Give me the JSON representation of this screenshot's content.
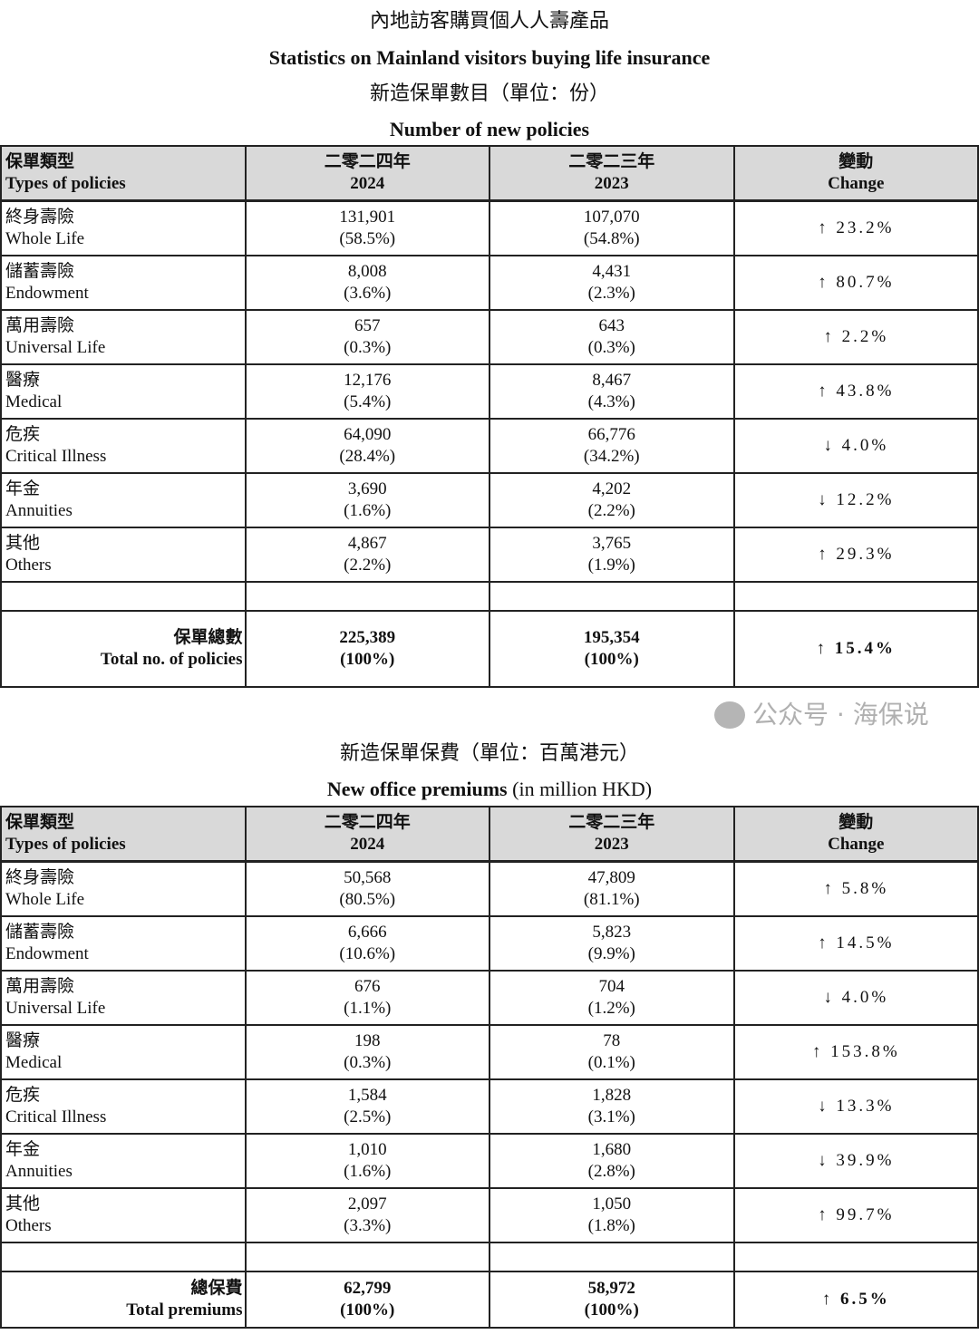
{
  "header": {
    "title_zh": "內地訪客購買個人人壽產品",
    "title_en": "Statistics on Mainland visitors buying life insurance"
  },
  "section1": {
    "subtitle_zh": "新造保單數目（單位：份）",
    "subtitle_en": "Number of new policies",
    "columns": [
      {
        "zh": "保單類型",
        "en": "Types of policies"
      },
      {
        "zh": "二零二四年",
        "en": "2024"
      },
      {
        "zh": "二零二三年",
        "en": "2023"
      },
      {
        "zh": "變動",
        "en": "Change"
      }
    ],
    "rows": [
      {
        "zh": "終身壽險",
        "en": "Whole Life",
        "v2024": "131,901",
        "p2024": "(58.5%)",
        "v2023": "107,070",
        "p2023": "(54.8%)",
        "change": "↑ 23.2%"
      },
      {
        "zh": "儲蓄壽險",
        "en": "Endowment",
        "v2024": "8,008",
        "p2024": "(3.6%)",
        "v2023": "4,431",
        "p2023": "(2.3%)",
        "change": "↑ 80.7%"
      },
      {
        "zh": "萬用壽險",
        "en": "Universal Life",
        "v2024": "657",
        "p2024": "(0.3%)",
        "v2023": "643",
        "p2023": "(0.3%)",
        "change": "↑ 2.2%"
      },
      {
        "zh": "醫療",
        "en": "Medical",
        "v2024": "12,176",
        "p2024": "(5.4%)",
        "v2023": "8,467",
        "p2023": "(4.3%)",
        "change": "↑ 43.8%"
      },
      {
        "zh": "危疾",
        "en": "Critical Illness",
        "v2024": "64,090",
        "p2024": "(28.4%)",
        "v2023": "66,776",
        "p2023": "(34.2%)",
        "change": "↓ 4.0%"
      },
      {
        "zh": "年金",
        "en": "Annuities",
        "v2024": "3,690",
        "p2024": "(1.6%)",
        "v2023": "4,202",
        "p2023": "(2.2%)",
        "change": "↓ 12.2%"
      },
      {
        "zh": "其他",
        "en": "Others",
        "v2024": "4,867",
        "p2024": "(2.2%)",
        "v2023": "3,765",
        "p2023": "(1.9%)",
        "change": "↑ 29.3%"
      }
    ],
    "total": {
      "zh": "保單總數",
      "en": "Total no. of policies",
      "v2024": "225,389",
      "p2024": "(100%)",
      "v2023": "195,354",
      "p2023": "(100%)",
      "change": "↑ 15.4%"
    }
  },
  "section2": {
    "subtitle_zh": "新造保單保費（單位：百萬港元）",
    "subtitle_en_bold": "New office premiums",
    "subtitle_en_rest": " (in million HKD)",
    "columns": [
      {
        "zh": "保單類型",
        "en": "Types of policies"
      },
      {
        "zh": "二零二四年",
        "en": "2024"
      },
      {
        "zh": "二零二三年",
        "en": "2023"
      },
      {
        "zh": "變動",
        "en": "Change"
      }
    ],
    "rows": [
      {
        "zh": "終身壽險",
        "en": "Whole Life",
        "v2024": "50,568",
        "p2024": "(80.5%)",
        "v2023": "47,809",
        "p2023": "(81.1%)",
        "change": "↑ 5.8%"
      },
      {
        "zh": "儲蓄壽險",
        "en": "Endowment",
        "v2024": "6,666",
        "p2024": "(10.6%)",
        "v2023": "5,823",
        "p2023": "(9.9%)",
        "change": "↑ 14.5%"
      },
      {
        "zh": "萬用壽險",
        "en": "Universal Life",
        "v2024": "676",
        "p2024": "(1.1%)",
        "v2023": "704",
        "p2023": "(1.2%)",
        "change": "↓ 4.0%"
      },
      {
        "zh": "醫療",
        "en": "Medical",
        "v2024": "198",
        "p2024": "(0.3%)",
        "v2023": "78",
        "p2023": "(0.1%)",
        "change": "↑ 153.8%"
      },
      {
        "zh": "危疾",
        "en": "Critical Illness",
        "v2024": "1,584",
        "p2024": "(2.5%)",
        "v2023": "1,828",
        "p2023": "(3.1%)",
        "change": "↓ 13.3%"
      },
      {
        "zh": "年金",
        "en": "Annuities",
        "v2024": "1,010",
        "p2024": "(1.6%)",
        "v2023": "1,680",
        "p2023": "(2.8%)",
        "change": "↓ 39.9%"
      },
      {
        "zh": "其他",
        "en": "Others",
        "v2024": "2,097",
        "p2024": "(3.3%)",
        "v2023": "1,050",
        "p2023": "(1.8%)",
        "change": "↑ 99.7%"
      }
    ],
    "total": {
      "zh": "總保費",
      "en": "Total premiums",
      "v2024": "62,799",
      "p2024": "(100%)",
      "v2023": "58,972",
      "p2023": "(100%)",
      "change": "↑ 6.5%"
    }
  },
  "watermark": {
    "text": "公众号 · 海保说",
    "icon": "wechat-icon"
  }
}
